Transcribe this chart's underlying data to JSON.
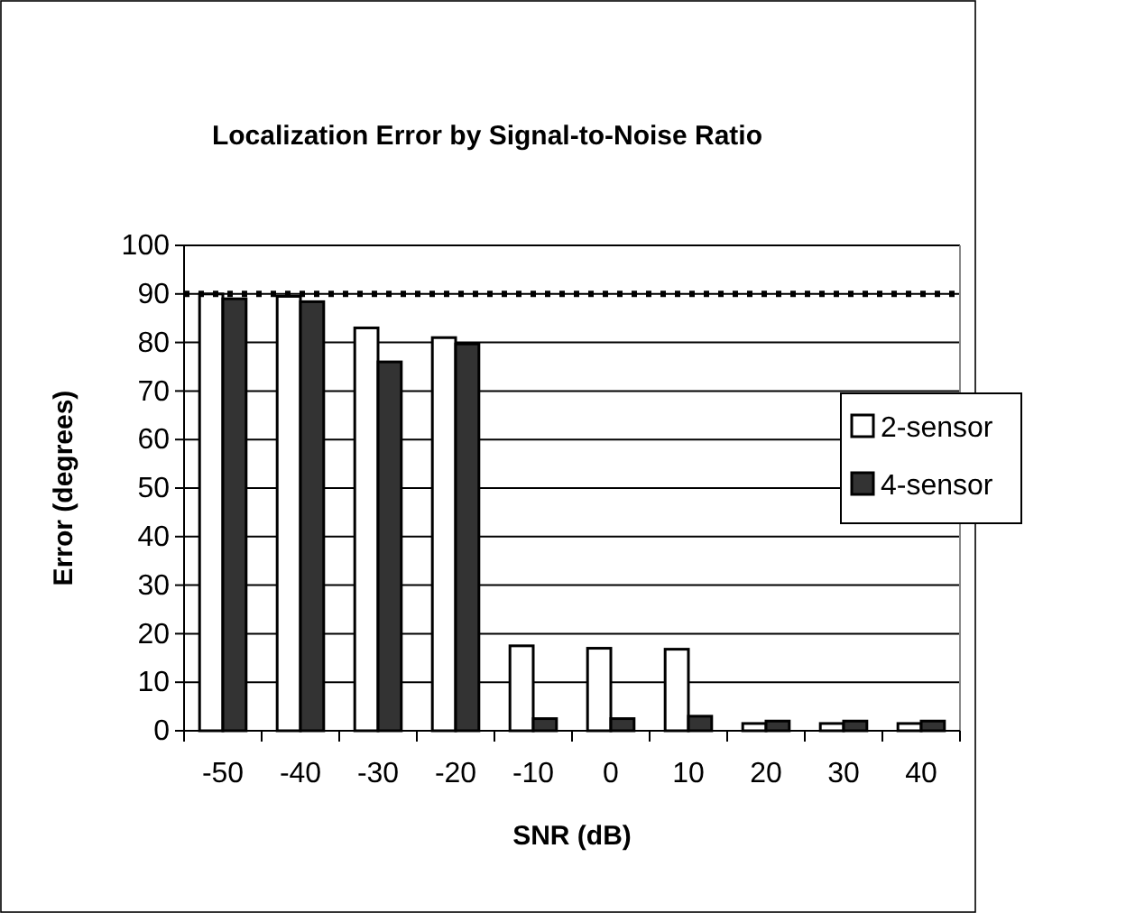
{
  "chart_data": {
    "type": "bar",
    "title": "Localization Error by Signal-to-Noise Ratio",
    "xlabel": "SNR (dB)",
    "ylabel": "Error (degrees)",
    "categories": [
      "-50",
      "-40",
      "-30",
      "-20",
      "-10",
      "0",
      "10",
      "20",
      "30",
      "40"
    ],
    "series": [
      {
        "name": "2-sensor",
        "color": "#ffffff",
        "values": [
          90,
          89.5,
          83,
          81,
          17.5,
          17,
          16.8,
          1.5,
          1.5,
          1.5
        ]
      },
      {
        "name": "4-sensor",
        "color": "#333333",
        "values": [
          89,
          88.4,
          76,
          79.7,
          2.5,
          2.5,
          3,
          2,
          2,
          2
        ]
      }
    ],
    "ylim": [
      0,
      100
    ],
    "yticks": [
      0,
      10,
      20,
      30,
      40,
      50,
      60,
      70,
      80,
      90,
      100
    ],
    "grid": "y",
    "legend": "right",
    "ref_lines": [
      {
        "axis": "y",
        "value": 90,
        "label": null,
        "color": "#000000",
        "line_style": "dotted"
      }
    ]
  }
}
